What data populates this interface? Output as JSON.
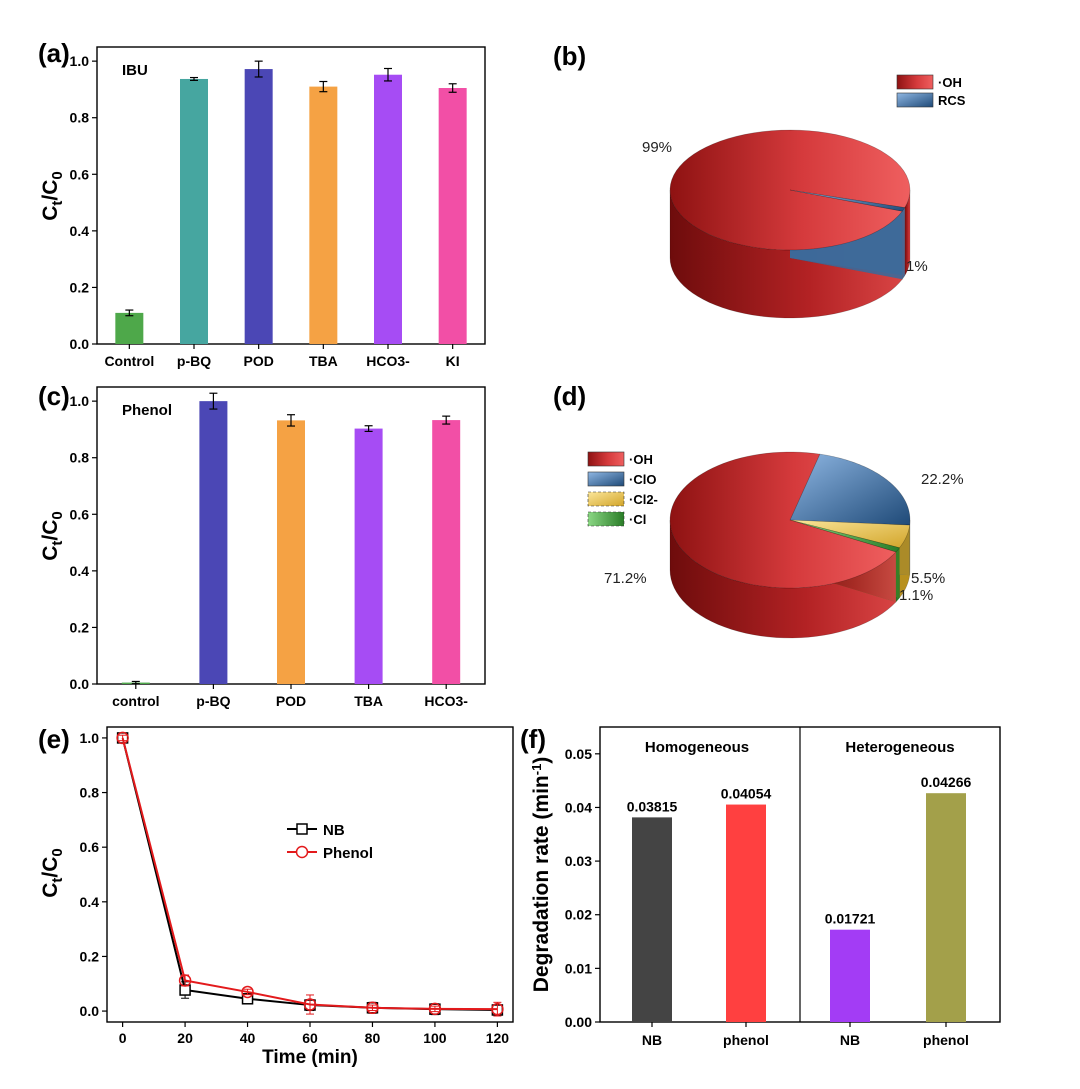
{
  "figure": {
    "panels": [
      {
        "id": "a",
        "label": "(a)"
      },
      {
        "id": "b",
        "label": "(b)"
      },
      {
        "id": "c",
        "label": "(c)"
      },
      {
        "id": "d",
        "label": "(d)"
      },
      {
        "id": "e",
        "label": "(e)"
      },
      {
        "id": "f",
        "label": "(f)"
      }
    ]
  },
  "chart_data": [
    {
      "id": "a",
      "type": "bar",
      "title": "IBU",
      "ylabel": "Ct/C0",
      "ylim": [
        0,
        1.05
      ],
      "yticks": [
        0.0,
        0.2,
        0.4,
        0.6,
        0.8,
        1.0
      ],
      "categories": [
        "Control",
        "p-BQ",
        "POD",
        "TBA",
        "HCO3-",
        "KI"
      ],
      "values": [
        0.11,
        0.937,
        0.972,
        0.91,
        0.952,
        0.905
      ],
      "errors": [
        0.01,
        0.005,
        0.028,
        0.018,
        0.022,
        0.015
      ],
      "colors": [
        "#4ea84a",
        "#46a6a0",
        "#4b47b5",
        "#f5a244",
        "#a64cf4",
        "#f24fa6"
      ]
    },
    {
      "id": "b",
      "type": "pie",
      "labels": [
        "·OH",
        "RCS"
      ],
      "values": [
        99,
        1
      ],
      "value_labels": [
        "99%",
        "1%"
      ],
      "colors": [
        "#c8282b",
        "#5b8fc4"
      ]
    },
    {
      "id": "c",
      "type": "bar",
      "title": "Phenol",
      "ylabel": "Ct/C0",
      "ylim": [
        0,
        1.05
      ],
      "yticks": [
        0.0,
        0.2,
        0.4,
        0.6,
        0.8,
        1.0
      ],
      "categories": [
        "control",
        "p-BQ",
        "POD",
        "TBA",
        "HCO3-"
      ],
      "values": [
        0.005,
        1.0,
        0.932,
        0.903,
        0.933
      ],
      "errors": [
        0.004,
        0.028,
        0.02,
        0.01,
        0.014
      ],
      "colors": [
        "#4ea84a",
        "#4b47b5",
        "#f5a244",
        "#a64cf4",
        "#f24fa6"
      ]
    },
    {
      "id": "d",
      "type": "pie",
      "labels": [
        "·OH",
        "·ClO",
        "·Cl2-",
        "·Cl"
      ],
      "values": [
        71.2,
        22.2,
        5.5,
        1.1
      ],
      "value_labels": [
        "71.2%",
        "22.2%",
        "5.5%",
        "1.1%"
      ],
      "colors": [
        "#c8282b",
        "#4f86bd",
        "#e5c04a",
        "#3f9b3c"
      ]
    },
    {
      "id": "e",
      "type": "line",
      "xlabel": "Time (min)",
      "ylabel": "Ct/C0",
      "xlim": [
        -5,
        125
      ],
      "ylim": [
        -0.04,
        1.04
      ],
      "xticks": [
        0,
        20,
        40,
        60,
        80,
        100,
        120
      ],
      "yticks": [
        0.0,
        0.2,
        0.4,
        0.6,
        0.8,
        1.0
      ],
      "x": [
        0,
        20,
        40,
        60,
        80,
        100,
        120
      ],
      "series": [
        {
          "name": "NB",
          "values": [
            1.0,
            0.077,
            0.045,
            0.022,
            0.012,
            0.007,
            0.004
          ],
          "errors": [
            0.01,
            0.03,
            0.01,
            0.02,
            0.02,
            0.02,
            0.02
          ],
          "color": "#000000",
          "marker": "square"
        },
        {
          "name": "Phenol",
          "values": [
            1.0,
            0.112,
            0.07,
            0.024,
            0.012,
            0.008,
            0.007
          ],
          "errors": [
            0.01,
            0.02,
            0.01,
            0.035,
            0.01,
            0.01,
            0.025
          ],
          "color": "#e31a1c",
          "marker": "circle"
        }
      ]
    },
    {
      "id": "f",
      "type": "bar",
      "ylabel": "Degradation rate (min-1)",
      "ylim": [
        0,
        0.055
      ],
      "yticks": [
        0.0,
        0.01,
        0.02,
        0.03,
        0.04,
        0.05
      ],
      "ytick_labels": [
        "0.00",
        "0.01",
        "0.02",
        "0.03",
        "0.04",
        "0.05"
      ],
      "groups": [
        "Homogeneous",
        "Heterogeneous"
      ],
      "categories": [
        "NB",
        "phenol",
        "NB",
        "phenol"
      ],
      "values": [
        0.03815,
        0.04054,
        0.01721,
        0.04266
      ],
      "value_labels": [
        "0.03815",
        "0.04054",
        "0.01721",
        "0.04266"
      ],
      "colors": [
        "#444444",
        "#ff4040",
        "#a33cf5",
        "#a3a04a"
      ]
    }
  ]
}
